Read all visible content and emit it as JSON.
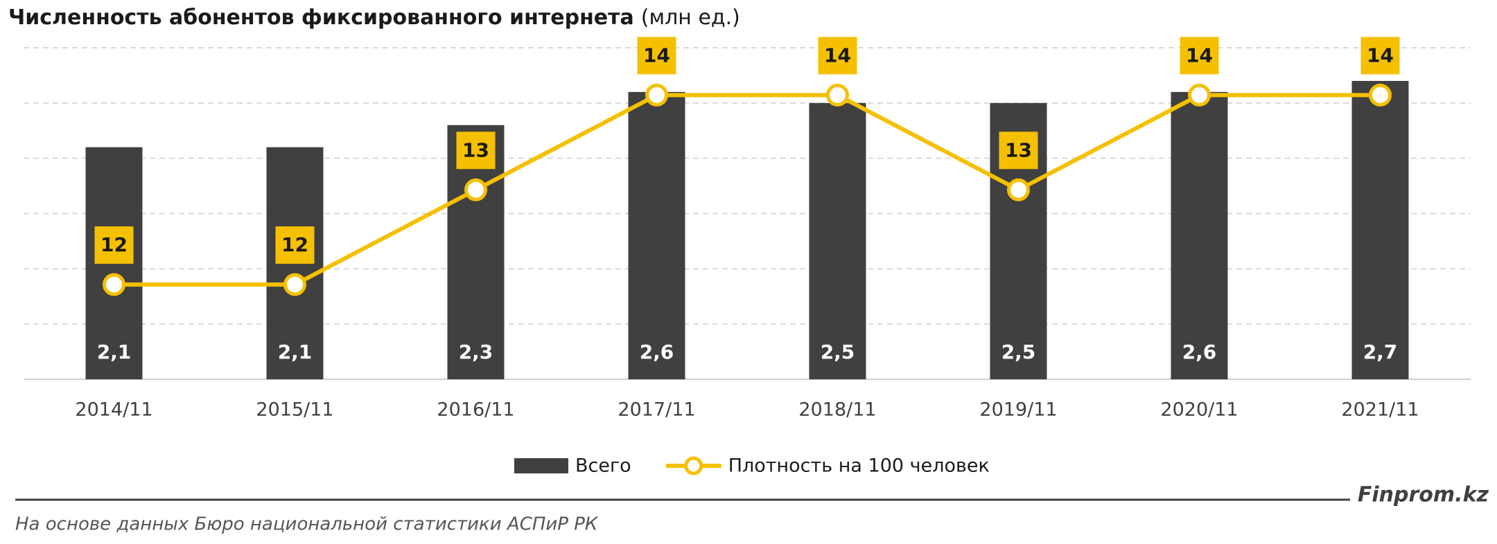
{
  "chart_data": {
    "type": "bar_line",
    "title": "Численность абонентов фиксированного интернета",
    "title_unit": "(млн ед.)",
    "categories": [
      "2014/11",
      "2015/11",
      "2016/11",
      "2017/11",
      "2018/11",
      "2019/11",
      "2020/11",
      "2021/11"
    ],
    "series": [
      {
        "name": "Всего",
        "type": "bar",
        "color": "#404040",
        "values": [
          2.1,
          2.1,
          2.3,
          2.6,
          2.5,
          2.5,
          2.6,
          2.7
        ],
        "value_labels": [
          "2,1",
          "2,1",
          "2,3",
          "2,6",
          "2,5",
          "2,5",
          "2,6",
          "2,7"
        ]
      },
      {
        "name": "Плотность на 100 человек",
        "type": "line",
        "axis": "y2",
        "color": "#f5c000",
        "values": [
          12,
          12,
          13,
          14,
          14,
          13,
          14,
          14
        ]
      }
    ],
    "ylim": [
      0,
      3
    ],
    "yticks": [
      0,
      0.5,
      1,
      1.5,
      2,
      2.5,
      3
    ],
    "y2lim": [
      11,
      14.5
    ],
    "grid": true,
    "legend": "bottom",
    "brand": "Finprom.kz",
    "source": "На основе данных Бюро национальной статистики АСПиР РК"
  }
}
